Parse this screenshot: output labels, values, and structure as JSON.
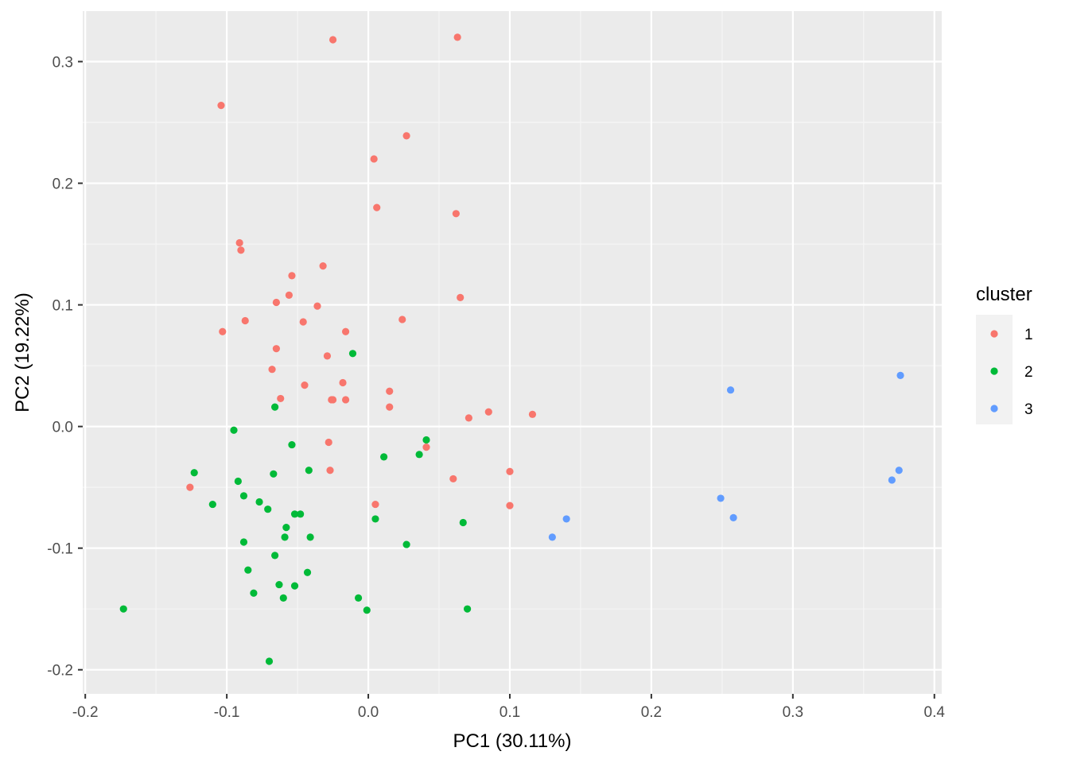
{
  "chart_data": {
    "type": "scatter",
    "xlabel": "PC1 (30.11%)",
    "ylabel": "PC2 (19.22%)",
    "xlim": [
      -0.2,
      0.4
    ],
    "ylim": [
      -0.2,
      0.3
    ],
    "x_ticks": [
      "-0.2",
      "-0.1",
      "0.0",
      "0.1",
      "0.2",
      "0.3",
      "0.4"
    ],
    "y_ticks": [
      "0.3",
      "0.2",
      "0.1",
      "0.0",
      "-0.1",
      "-0.2"
    ],
    "grid": true,
    "legend": {
      "title": "cluster",
      "placement": "right",
      "entries": [
        "1",
        "2",
        "3"
      ]
    },
    "series": [
      {
        "name": "1",
        "color": "#F8766D",
        "points": [
          [
            -0.025,
            0.318
          ],
          [
            0.063,
            0.32
          ],
          [
            -0.104,
            0.264
          ],
          [
            0.027,
            0.239
          ],
          [
            0.004,
            0.22
          ],
          [
            0.006,
            0.18
          ],
          [
            0.062,
            0.175
          ],
          [
            -0.091,
            0.151
          ],
          [
            -0.09,
            0.145
          ],
          [
            -0.054,
            0.124
          ],
          [
            -0.032,
            0.132
          ],
          [
            -0.056,
            0.108
          ],
          [
            0.065,
            0.106
          ],
          [
            -0.065,
            0.102
          ],
          [
            -0.036,
            0.099
          ],
          [
            -0.087,
            0.087
          ],
          [
            -0.046,
            0.086
          ],
          [
            0.024,
            0.088
          ],
          [
            -0.103,
            0.078
          ],
          [
            -0.016,
            0.078
          ],
          [
            -0.065,
            0.064
          ],
          [
            -0.029,
            0.058
          ],
          [
            -0.068,
            0.047
          ],
          [
            -0.045,
            0.034
          ],
          [
            -0.018,
            0.036
          ],
          [
            0.015,
            0.029
          ],
          [
            -0.062,
            0.023
          ],
          [
            -0.026,
            0.022
          ],
          [
            -0.025,
            0.022
          ],
          [
            -0.016,
            0.022
          ],
          [
            0.015,
            0.016
          ],
          [
            0.085,
            0.012
          ],
          [
            0.116,
            0.01
          ],
          [
            0.071,
            0.007
          ],
          [
            -0.028,
            -0.013
          ],
          [
            0.041,
            -0.017
          ],
          [
            -0.027,
            -0.036
          ],
          [
            0.1,
            -0.037
          ],
          [
            0.06,
            -0.043
          ],
          [
            -0.126,
            -0.05
          ],
          [
            0.005,
            -0.064
          ],
          [
            0.1,
            -0.065
          ]
        ]
      },
      {
        "name": "2",
        "color": "#00BA38",
        "points": [
          [
            -0.011,
            0.06
          ],
          [
            -0.066,
            0.016
          ],
          [
            -0.095,
            -0.003
          ],
          [
            0.041,
            -0.011
          ],
          [
            -0.054,
            -0.015
          ],
          [
            0.011,
            -0.025
          ],
          [
            0.036,
            -0.023
          ],
          [
            -0.123,
            -0.038
          ],
          [
            -0.042,
            -0.036
          ],
          [
            -0.067,
            -0.039
          ],
          [
            -0.092,
            -0.045
          ],
          [
            -0.088,
            -0.057
          ],
          [
            -0.11,
            -0.064
          ],
          [
            -0.077,
            -0.062
          ],
          [
            -0.071,
            -0.068
          ],
          [
            -0.052,
            -0.072
          ],
          [
            -0.048,
            -0.072
          ],
          [
            0.005,
            -0.076
          ],
          [
            0.067,
            -0.079
          ],
          [
            -0.058,
            -0.083
          ],
          [
            -0.041,
            -0.091
          ],
          [
            -0.059,
            -0.091
          ],
          [
            -0.088,
            -0.095
          ],
          [
            0.027,
            -0.097
          ],
          [
            -0.066,
            -0.106
          ],
          [
            -0.085,
            -0.118
          ],
          [
            -0.043,
            -0.12
          ],
          [
            -0.063,
            -0.13
          ],
          [
            -0.052,
            -0.131
          ],
          [
            -0.081,
            -0.137
          ],
          [
            -0.06,
            -0.141
          ],
          [
            -0.007,
            -0.141
          ],
          [
            -0.001,
            -0.151
          ],
          [
            -0.173,
            -0.15
          ],
          [
            0.07,
            -0.15
          ],
          [
            -0.07,
            -0.193
          ]
        ]
      },
      {
        "name": "3",
        "color": "#619CFF",
        "points": [
          [
            0.376,
            0.042
          ],
          [
            0.256,
            0.03
          ],
          [
            0.375,
            -0.036
          ],
          [
            0.37,
            -0.044
          ],
          [
            0.249,
            -0.059
          ],
          [
            0.258,
            -0.075
          ],
          [
            0.14,
            -0.076
          ],
          [
            0.13,
            -0.091
          ]
        ]
      }
    ]
  }
}
